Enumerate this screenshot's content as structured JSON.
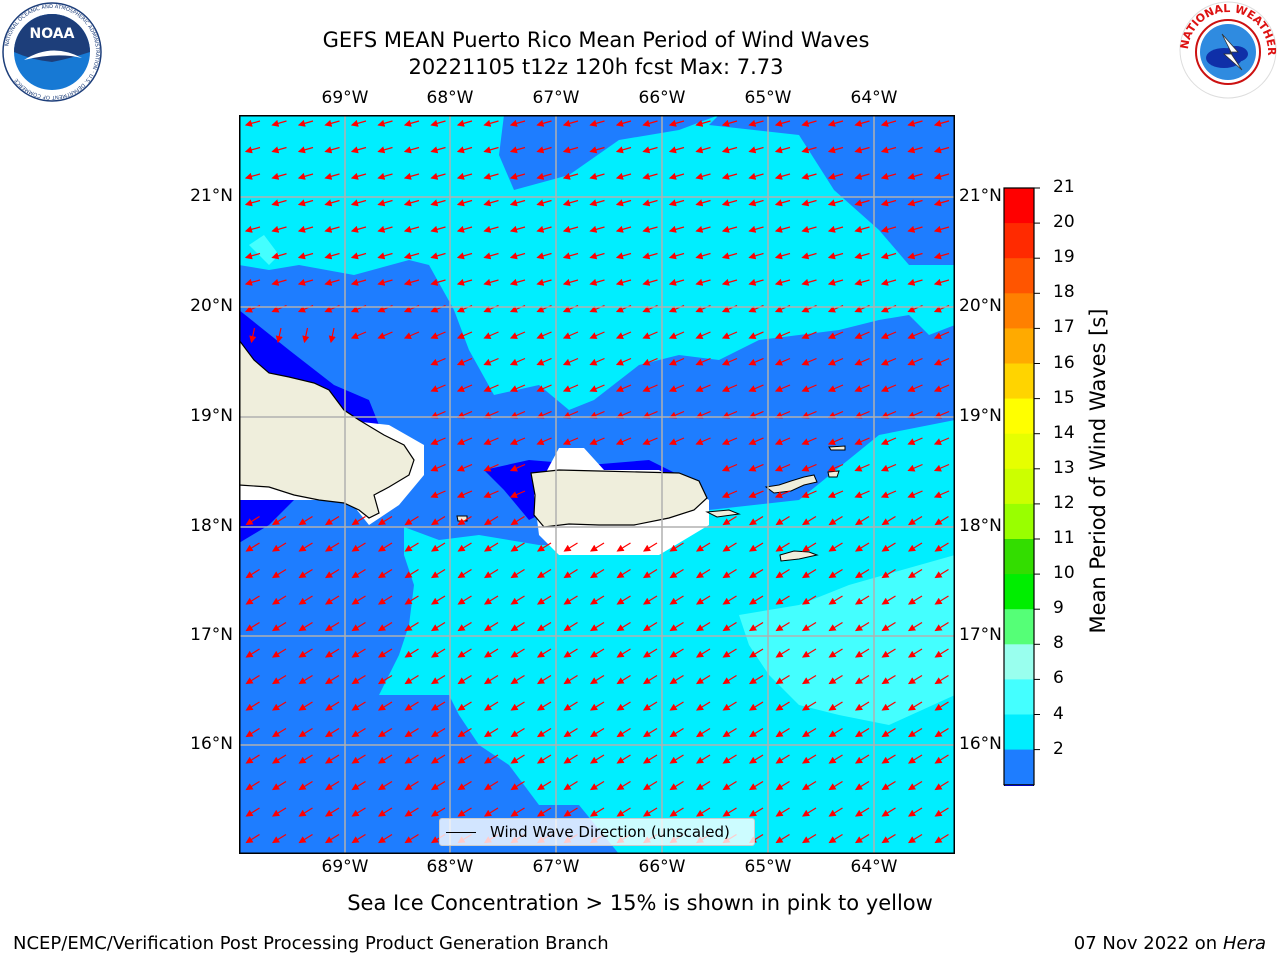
{
  "title": {
    "line1": "GEFS MEAN Puerto Rico Mean Period of Wind Waves",
    "line2": "20221105 t12z 120h fcst   Max: 7.73"
  },
  "map": {
    "lon_labels": [
      "69°W",
      "68°W",
      "67°W",
      "66°W",
      "65°W",
      "64°W"
    ],
    "lat_labels": [
      "21°N",
      "20°N",
      "19°N",
      "18°N",
      "17°N",
      "16°N"
    ],
    "legend_label": "Wind Wave Direction (unscaled)"
  },
  "colorbar": {
    "label": "Mean Period of Wind Waves [s]",
    "ticks": [
      "21",
      "20",
      "19",
      "18",
      "17",
      "16",
      "15",
      "14",
      "13",
      "12",
      "11",
      "10",
      "9",
      "8",
      "6",
      "4",
      "2"
    ],
    "colors": [
      "#ff0000",
      "#ff2a00",
      "#ff5500",
      "#ff8000",
      "#ffaa00",
      "#ffd400",
      "#ffff00",
      "#e6ff00",
      "#ccff00",
      "#99ff00",
      "#33dd00",
      "#00ee00",
      "#55ff77",
      "#99ffee",
      "#44ffff",
      "#00eeff",
      "#1e7dff"
    ],
    "extend_color": "#0000ff"
  },
  "footer": {
    "note": "Sea Ice Concentration > 15% is shown in pink to yellow",
    "left": "NCEP/EMC/Verification Post Processing Product Generation Branch",
    "right_date": "07 Nov 2022 on",
    "right_host": "Hera"
  },
  "logos": {
    "noaa_text": "NOAA",
    "noaa_ring": "NATIONAL OCEANIC AND ATMOSPHERIC ADMINISTRATION · U.S. DEPARTMENT OF COMMERCE",
    "nws_ring": "NATIONAL WEATHER SERVICE"
  },
  "colors": {
    "land": "#efeedc",
    "sea_dark": "#1e7dff",
    "sea_cyan": "#00eeff",
    "sea_light": "#44ffff",
    "sea_deep": "#0000ff",
    "arrow": "#ff0000"
  }
}
